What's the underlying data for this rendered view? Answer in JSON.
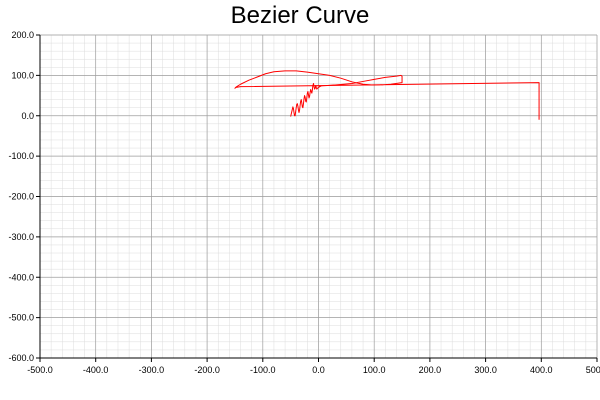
{
  "chart_data": {
    "type": "line",
    "title": "Bezier Curve",
    "xlabel": "",
    "ylabel": "",
    "xlim": [
      -500,
      500
    ],
    "ylim": [
      -600,
      200
    ],
    "x_major_step": 100,
    "y_major_step": 100,
    "minor_per_major": 5,
    "grid": true,
    "x_tick_labels": [
      "-500.0",
      "-400.0",
      "-300.0",
      "-200.0",
      "-100.0",
      "0.0",
      "100.0",
      "200.0",
      "300.0",
      "400.0",
      "500.0"
    ],
    "y_tick_labels": [
      "200.0",
      "100.0",
      "0.0",
      "-100.0",
      "-200.0",
      "-300.0",
      "-400.0",
      "-500.0",
      "-600.0"
    ],
    "series": [
      {
        "color": "#ff0000",
        "x": [
          -50,
          -48,
          -46,
          -45,
          -44,
          -43,
          -42,
          -41,
          -40,
          -39,
          -38,
          -37,
          -36,
          -35,
          -34,
          -33,
          -32,
          -31,
          -30,
          -29,
          -28,
          -27,
          -26,
          -25,
          -24,
          -23,
          -22,
          -21,
          -20,
          -19,
          -18,
          -17,
          -16,
          -15,
          -14,
          -13,
          -12,
          -11,
          -10,
          -9,
          -8,
          -7,
          -6,
          -5,
          -4,
          -3,
          -2,
          0,
          2,
          5,
          30,
          60,
          80,
          100,
          120,
          140,
          148,
          150,
          150,
          130,
          110,
          95,
          80,
          60,
          40,
          20,
          0,
          -20,
          -40,
          -60,
          -80,
          -95,
          -110,
          -125,
          -140,
          -148,
          -150,
          -149,
          -140,
          396,
          396
        ],
        "y": [
          -2,
          10,
          22,
          18,
          8,
          0,
          0,
          10,
          20,
          28,
          30,
          24,
          14,
          8,
          14,
          26,
          36,
          40,
          32,
          22,
          20,
          30,
          42,
          50,
          46,
          36,
          34,
          44,
          56,
          60,
          52,
          44,
          48,
          58,
          65,
          60,
          56,
          64,
          75,
          80,
          72,
          66,
          68,
          75,
          70,
          66,
          68,
          70,
          72,
          74,
          76,
          80,
          85,
          90,
          95,
          98,
          100,
          98,
          82,
          78,
          76,
          76,
          78,
          84,
          93,
          100,
          104,
          108,
          111,
          111,
          109,
          104,
          96,
          88,
          78,
          71,
          68,
          70,
          72,
          82,
          -10
        ]
      }
    ]
  }
}
